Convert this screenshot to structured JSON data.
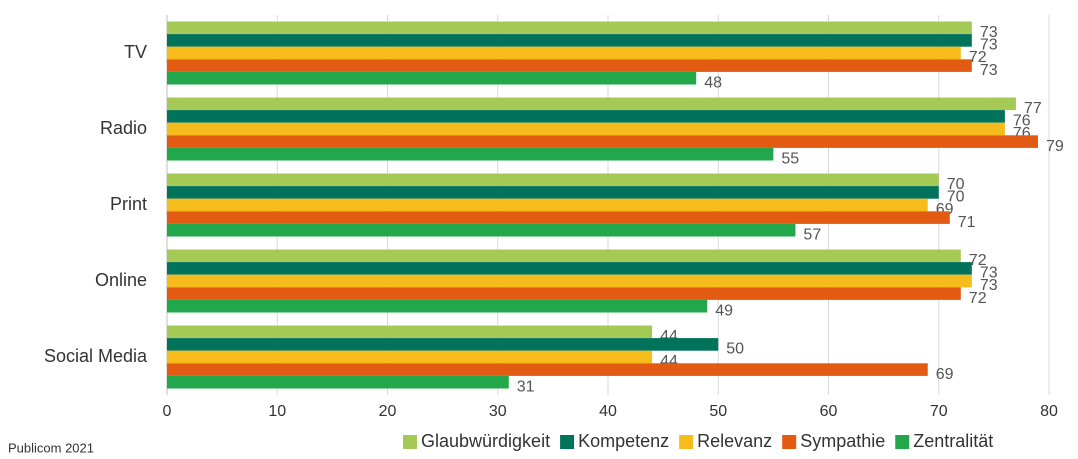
{
  "chart_data": {
    "type": "barh",
    "categories": [
      "TV",
      "Radio",
      "Print",
      "Online",
      "Social Media"
    ],
    "series": [
      {
        "name": "Glaubwürdigkeit",
        "color": "#a5c955",
        "values": [
          73,
          77,
          70,
          72,
          44
        ]
      },
      {
        "name": "Kompetenz",
        "color": "#00735a",
        "values": [
          73,
          76,
          70,
          73,
          50
        ]
      },
      {
        "name": "Relevanz",
        "color": "#f5bc1c",
        "values": [
          72,
          76,
          69,
          73,
          44
        ]
      },
      {
        "name": "Sympathie",
        "color": "#e35a12",
        "values": [
          73,
          79,
          71,
          72,
          69
        ]
      },
      {
        "name": "Zentralität",
        "color": "#22a84a",
        "values": [
          48,
          55,
          57,
          49,
          31
        ]
      }
    ],
    "xlim": [
      0,
      80
    ],
    "xticks": [
      0,
      10,
      20,
      30,
      40,
      50,
      60,
      70,
      80
    ],
    "grid": true,
    "source": "Publicom 2021",
    "legend": "bottom-right"
  }
}
